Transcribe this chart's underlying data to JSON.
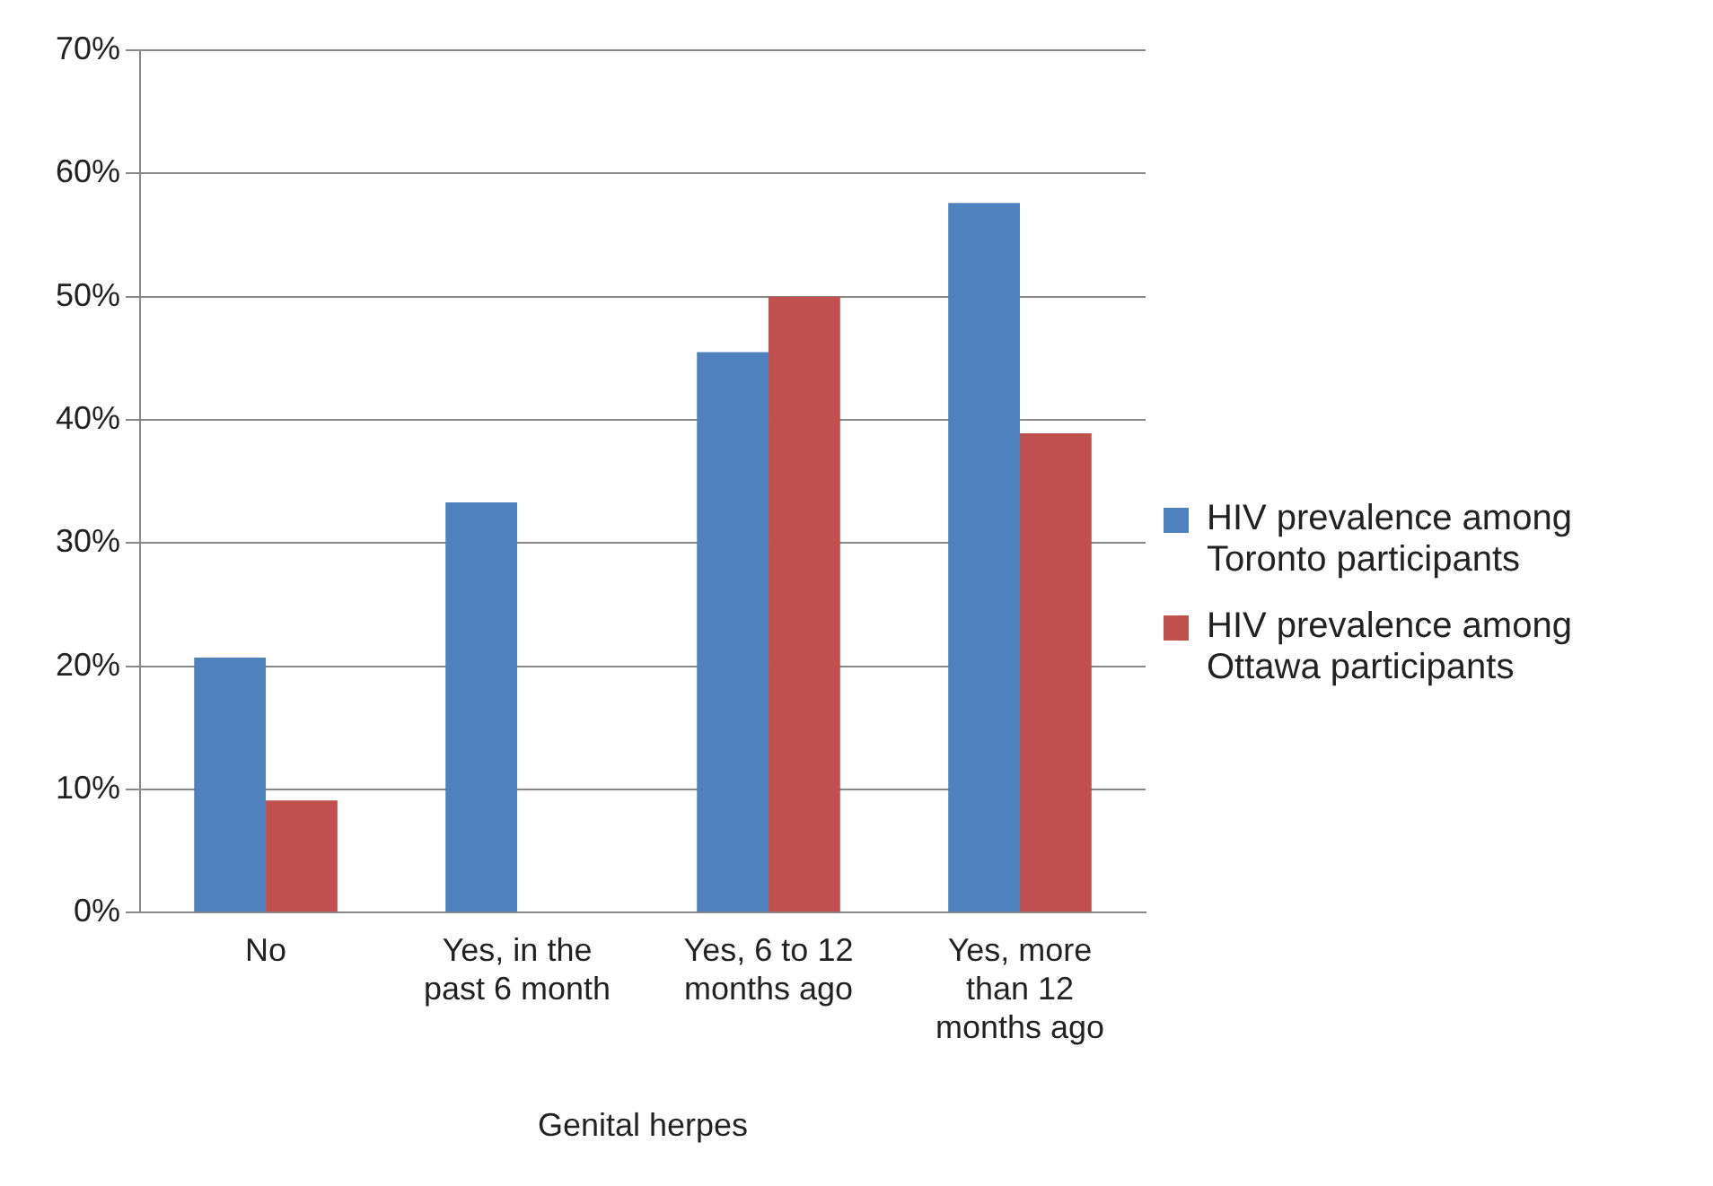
{
  "chart_data": {
    "type": "bar",
    "xlabel": "Genital herpes",
    "categories": [
      "No",
      "Yes, in the past 6 month",
      "Yes, 6 to 12 months ago",
      "Yes, more than 12 months ago"
    ],
    "series": [
      {
        "name": "HIV prevalence among Toronto participants",
        "color": "#4f81bd",
        "values": [
          20.7,
          33.3,
          45.5,
          57.6
        ]
      },
      {
        "name": "HIV prevalence among Ottawa participants",
        "color": "#c0504d",
        "values": [
          9.1,
          0,
          50,
          38.9
        ]
      }
    ],
    "ylim": [
      0,
      70
    ],
    "yticks": [
      {
        "value": 0,
        "label": "0%"
      },
      {
        "value": 10,
        "label": "10%"
      },
      {
        "value": 20,
        "label": "20%"
      },
      {
        "value": 30,
        "label": "30%"
      },
      {
        "value": 40,
        "label": "40%"
      },
      {
        "value": 50,
        "label": "50%"
      },
      {
        "value": 60,
        "label": "60%"
      },
      {
        "value": 70,
        "label": "70%"
      }
    ],
    "grid": "y",
    "legend": "right"
  }
}
